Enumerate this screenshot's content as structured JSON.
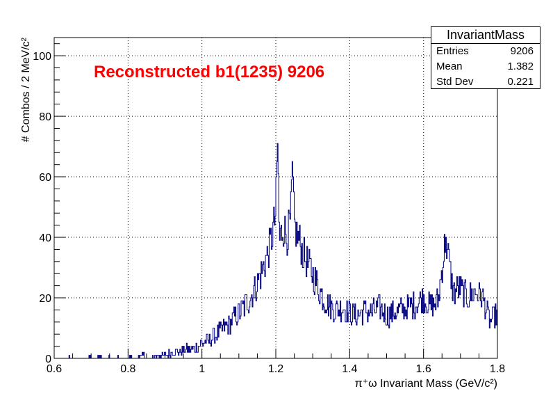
{
  "chart_data": {
    "type": "histogram",
    "title": "Reconstructed b1(1235) 9206",
    "xlabel": "π⁺ω Invariant Mass (GeV/c²)",
    "ylabel": "# Combos / 2 MeV/c²",
    "xlim": [
      0.6,
      1.8
    ],
    "ylim": [
      0,
      106
    ],
    "x_ticks": [
      "0.6",
      "0.8",
      "1",
      "1.2",
      "1.4",
      "1.6",
      "1.8"
    ],
    "y_ticks": [
      "0",
      "20",
      "40",
      "60",
      "80",
      "100"
    ],
    "grid": true,
    "bin_width": 0.002,
    "series": [
      {
        "color": "#000080",
        "x": [
          0.8,
          0.82,
          0.84,
          0.86,
          0.88,
          0.9,
          0.92,
          0.94,
          0.96,
          0.98,
          1.0,
          1.02,
          1.04,
          1.06,
          1.08,
          1.1,
          1.12,
          1.14,
          1.16,
          1.18,
          1.19,
          1.2,
          1.205,
          1.21,
          1.22,
          1.23,
          1.24,
          1.245,
          1.25,
          1.26,
          1.28,
          1.3,
          1.32,
          1.34,
          1.36,
          1.38,
          1.4,
          1.42,
          1.44,
          1.46,
          1.48,
          1.5,
          1.52,
          1.54,
          1.56,
          1.58,
          1.6,
          1.62,
          1.64,
          1.66,
          1.68,
          1.7,
          1.72,
          1.74,
          1.76,
          1.78,
          1.8
        ],
        "y": [
          0,
          0,
          1,
          0,
          1,
          1,
          2,
          2,
          3,
          3,
          5,
          6,
          8,
          10,
          12,
          15,
          18,
          22,
          28,
          35,
          40,
          48,
          71,
          38,
          44,
          40,
          45,
          61,
          44,
          40,
          33,
          28,
          22,
          18,
          16,
          17,
          15,
          14,
          16,
          15,
          17,
          14,
          15,
          16,
          17,
          18,
          20,
          17,
          19,
          40,
          22,
          23,
          20,
          22,
          20,
          12,
          15
        ]
      }
    ],
    "stats": {
      "title": "InvariantMass",
      "rows": [
        {
          "label": "Entries",
          "value": "9206"
        },
        {
          "label": "Mean",
          "value": "1.382"
        },
        {
          "label": "Std Dev",
          "value": "0.221"
        }
      ]
    },
    "colors": {
      "histogram": "#000080",
      "title": "#ff0000",
      "frame": "#000000",
      "grid": "#000000"
    }
  }
}
